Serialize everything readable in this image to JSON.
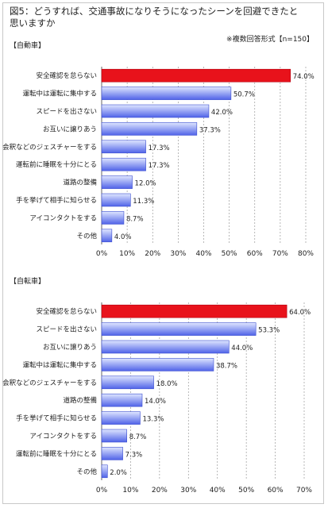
{
  "figure": {
    "title": "図5：どうすれば、交通事故になりそうになったシーンを回避できたと思いますか",
    "note": "※複数回答形式【n=150】"
  },
  "colors": {
    "highlight": "#e8121b",
    "bar_light": "#dfe6ff",
    "bar_dark": "#5063e8",
    "grid": "#9a9a9a",
    "axis": "#666666"
  },
  "chart_data": [
    {
      "type": "bar",
      "orientation": "horizontal",
      "title": "【自動車】",
      "categories": [
        "安全確認を怠らない",
        "運転中は運転に集中する",
        "スピードを出さない",
        "お互いに譲りあう",
        "会釈などのジェスチャーをする",
        "運転前に睡眠を十分にとる",
        "道路の整備",
        "手を挙げて相手に知らせる",
        "アイコンタクトをする",
        "その他"
      ],
      "values": [
        74.0,
        50.7,
        42.0,
        37.3,
        17.3,
        17.3,
        12.0,
        11.3,
        8.7,
        4.0
      ],
      "value_labels": [
        "74.0%",
        "50.7%",
        "42.0%",
        "37.3%",
        "17.3%",
        "17.3%",
        "12.0%",
        "11.3%",
        "8.7%",
        "4.0%"
      ],
      "xlim": [
        0,
        80
      ],
      "ticks": [
        "0%",
        "10%",
        "20%",
        "30%",
        "40%",
        "50%",
        "60%",
        "70%",
        "80%"
      ],
      "grid": true,
      "highlight_index": 0
    },
    {
      "type": "bar",
      "orientation": "horizontal",
      "title": "【自転車】",
      "categories": [
        "安全確認を怠らない",
        "スピードを出さない",
        "お互いに譲りあう",
        "運転中は運転に集中する",
        "会釈などのジェスチャーをする",
        "道路の整備",
        "手を挙げて相手に知らせる",
        "アイコンタクトをする",
        "運転前に睡眠を十分にとる",
        "その他"
      ],
      "values": [
        64.0,
        53.3,
        44.0,
        38.7,
        18.0,
        14.0,
        13.3,
        8.7,
        7.3,
        2.0
      ],
      "value_labels": [
        "64.0%",
        "53.3%",
        "44.0%",
        "38.7%",
        "18.0%",
        "14.0%",
        "13.3%",
        "8.7%",
        "7.3%",
        "2.0%"
      ],
      "xlim": [
        0,
        70
      ],
      "ticks": [
        "0%",
        "10%",
        "20%",
        "30%",
        "40%",
        "50%",
        "60%",
        "70%"
      ],
      "grid": true,
      "highlight_index": 0
    }
  ]
}
